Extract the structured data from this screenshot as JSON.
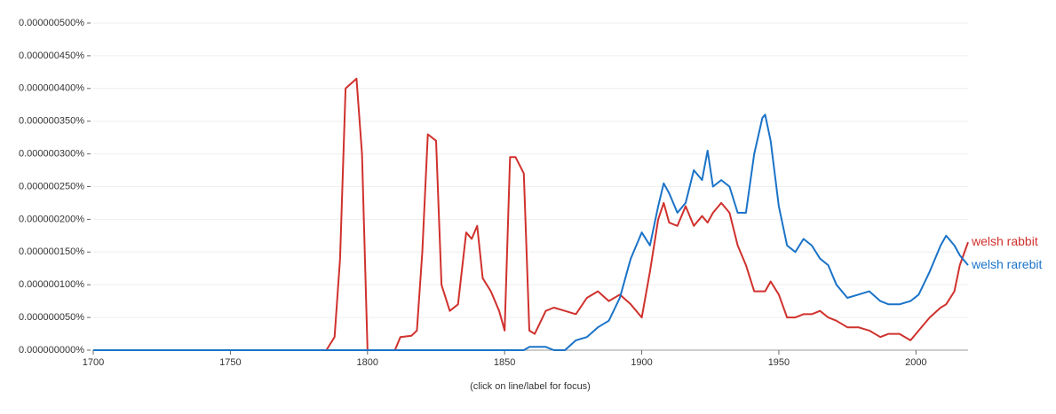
{
  "chart_data": {
    "type": "line",
    "note": "(click on line/label for focus)",
    "xlim": [
      1700,
      2019
    ],
    "xticks": [
      1700,
      1750,
      1800,
      1850,
      1900,
      1950,
      2000
    ],
    "ylim": [
      0,
      5e-07
    ],
    "yticks": [
      {
        "value": 0,
        "label": "0.000000000%"
      },
      {
        "value": 5e-08,
        "label": "0.000000050%"
      },
      {
        "value": 1e-07,
        "label": "0.000000100%"
      },
      {
        "value": 1.5e-07,
        "label": "0.000000150%"
      },
      {
        "value": 2e-07,
        "label": "0.000000200%"
      },
      {
        "value": 2.5e-07,
        "label": "0.000000250%"
      },
      {
        "value": 3e-07,
        "label": "0.000000300%"
      },
      {
        "value": 3.5e-07,
        "label": "0.000000350%"
      },
      {
        "value": 4e-07,
        "label": "0.000000400%"
      },
      {
        "value": 4.5e-07,
        "label": "0.000000450%"
      },
      {
        "value": 5e-07,
        "label": "0.000000500%"
      }
    ],
    "grid": true,
    "x": [
      1700,
      1785,
      1788,
      1790,
      1792,
      1796,
      1798,
      1800,
      1802,
      1810,
      1812,
      1816,
      1818,
      1820,
      1822,
      1825,
      1827,
      1830,
      1833,
      1836,
      1838,
      1840,
      1842,
      1845,
      1848,
      1850,
      1852,
      1854,
      1857,
      1859,
      1861,
      1865,
      1868,
      1872,
      1876,
      1880,
      1884,
      1888,
      1892,
      1896,
      1900,
      1903,
      1906,
      1908,
      1910,
      1913,
      1916,
      1919,
      1922,
      1924,
      1926,
      1929,
      1932,
      1935,
      1938,
      1941,
      1944,
      1945,
      1947,
      1950,
      1953,
      1956,
      1959,
      1962,
      1965,
      1968,
      1971,
      1975,
      1979,
      1983,
      1987,
      1990,
      1994,
      1998,
      2001,
      2005,
      2009,
      2011,
      2014,
      2016,
      2019
    ],
    "series": [
      {
        "name": "welsh rabbit",
        "color": "#d0312d",
        "values": [
          0,
          0,
          2e-08,
          1.4e-07,
          4e-07,
          4.15e-07,
          3e-07,
          0,
          0,
          0,
          2e-08,
          2.2e-08,
          3e-08,
          1.5e-07,
          3.3e-07,
          3.2e-07,
          1e-07,
          6e-08,
          7e-08,
          1.8e-07,
          1.7e-07,
          1.9e-07,
          1.1e-07,
          9e-08,
          6e-08,
          3e-08,
          2.95e-07,
          2.95e-07,
          2.7e-07,
          3e-08,
          2.5e-08,
          6e-08,
          6.5e-08,
          6e-08,
          5.5e-08,
          8e-08,
          9e-08,
          7.5e-08,
          8.5e-08,
          7e-08,
          5e-08,
          1.2e-07,
          2e-07,
          2.25e-07,
          1.95e-07,
          1.9e-07,
          2.2e-07,
          1.9e-07,
          2.05e-07,
          1.95e-07,
          2.1e-07,
          2.25e-07,
          2.1e-07,
          1.6e-07,
          1.3e-07,
          9e-08,
          9e-08,
          9e-08,
          1.05e-07,
          8.5e-08,
          5e-08,
          5e-08,
          5.5e-08,
          5.5e-08,
          6e-08,
          5e-08,
          4.5e-08,
          3.5e-08,
          3.5e-08,
          3e-08,
          2e-08,
          2.5e-08,
          2.5e-08,
          1.5e-08,
          3e-08,
          5e-08,
          6.5e-08,
          7e-08,
          9e-08,
          1.3e-07,
          1.65e-07
        ]
      },
      {
        "name": "welsh rarebit",
        "color": "#1a73c8",
        "values": [
          0,
          0,
          0,
          0,
          0,
          0,
          0,
          0,
          0,
          0,
          0,
          0,
          0,
          0,
          0,
          0,
          0,
          0,
          0,
          0,
          0,
          0,
          0,
          0,
          0,
          0,
          0,
          0,
          0,
          5e-09,
          5e-09,
          5e-09,
          0,
          0,
          1.5e-08,
          2e-08,
          3.5e-08,
          4.5e-08,
          8e-08,
          1.4e-07,
          1.8e-07,
          1.6e-07,
          2.2e-07,
          2.55e-07,
          2.4e-07,
          2.1e-07,
          2.25e-07,
          2.75e-07,
          2.6e-07,
          3.05e-07,
          2.5e-07,
          2.6e-07,
          2.5e-07,
          2.1e-07,
          2.1e-07,
          3e-07,
          3.55e-07,
          3.6e-07,
          3.2e-07,
          2.2e-07,
          1.6e-07,
          1.5e-07,
          1.7e-07,
          1.6e-07,
          1.4e-07,
          1.3e-07,
          1e-07,
          8e-08,
          8.5e-08,
          9e-08,
          7.5e-08,
          7e-08,
          7e-08,
          7.5e-08,
          8.5e-08,
          1.2e-07,
          1.6e-07,
          1.75e-07,
          1.6e-07,
          1.45e-07,
          1.3e-07
        ]
      }
    ]
  }
}
